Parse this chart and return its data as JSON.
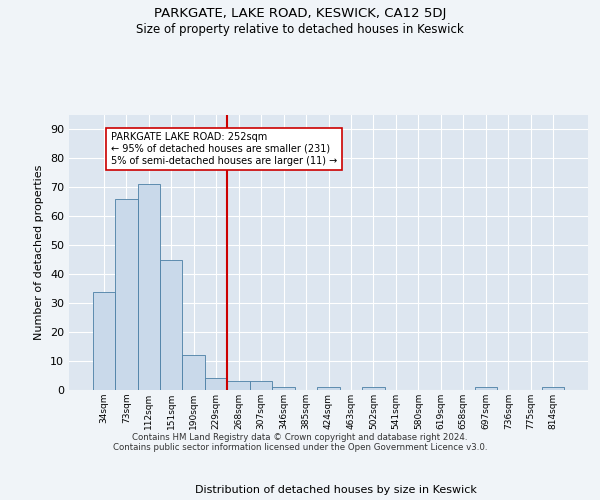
{
  "title": "PARKGATE, LAKE ROAD, KESWICK, CA12 5DJ",
  "subtitle": "Size of property relative to detached houses in Keswick",
  "xlabel": "Distribution of detached houses by size in Keswick",
  "ylabel": "Number of detached properties",
  "bar_values": [
    34,
    66,
    71,
    45,
    12,
    4,
    3,
    3,
    1,
    0,
    1,
    0,
    1,
    0,
    0,
    0,
    0,
    1,
    0,
    0,
    1
  ],
  "bin_labels": [
    "34sqm",
    "73sqm",
    "112sqm",
    "151sqm",
    "190sqm",
    "229sqm",
    "268sqm",
    "307sqm",
    "346sqm",
    "385sqm",
    "424sqm",
    "463sqm",
    "502sqm",
    "541sqm",
    "580sqm",
    "619sqm",
    "658sqm",
    "697sqm",
    "736sqm",
    "775sqm",
    "814sqm"
  ],
  "bar_color": "#c9d9ea",
  "bar_edge_color": "#4a7fa5",
  "vline_x": 5.5,
  "vline_color": "#cc0000",
  "annotation_text": "PARKGATE LAKE ROAD: 252sqm\n← 95% of detached houses are smaller (231)\n5% of semi-detached houses are larger (11) →",
  "annotation_box_color": "#ffffff",
  "annotation_box_edge": "#cc0000",
  "ylim": [
    0,
    95
  ],
  "yticks": [
    0,
    10,
    20,
    30,
    40,
    50,
    60,
    70,
    80,
    90
  ],
  "bg_color": "#dde6f0",
  "grid_color": "#ffffff",
  "fig_bg_color": "#f0f4f8",
  "footer_line1": "Contains HM Land Registry data © Crown copyright and database right 2024.",
  "footer_line2": "Contains public sector information licensed under the Open Government Licence v3.0."
}
